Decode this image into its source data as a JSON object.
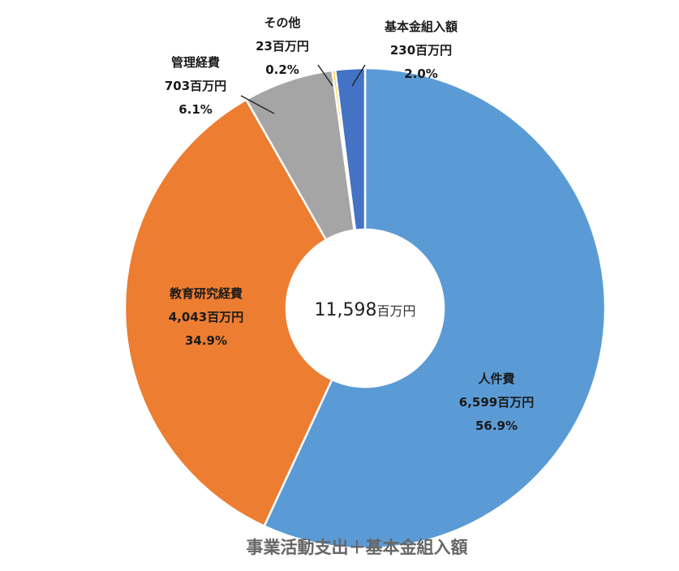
{
  "chart_data": {
    "type": "pie",
    "variant": "donut",
    "title": "事業活動支出＋基本金組入額",
    "center_label": {
      "value": "11,598",
      "unit": "百万円"
    },
    "total": 11598,
    "unit": "百万円",
    "slices": [
      {
        "label": "人件費",
        "value": 6599,
        "value_text": "6,599百万円",
        "percent": "56.9%",
        "color": "#5B9BD5"
      },
      {
        "label": "教育研究経費",
        "value": 4043,
        "value_text": "4,043百万円",
        "percent": "34.9%",
        "color": "#ED7D31"
      },
      {
        "label": "管理経費",
        "value": 703,
        "value_text": "703百万円",
        "percent": "6.1%",
        "color": "#A5A5A5"
      },
      {
        "label": "その他",
        "value": 23,
        "value_text": "23百万円",
        "percent": "0.2%",
        "color": "#FFC000"
      },
      {
        "label": "基本金組入額",
        "value": 230,
        "value_text": "230百万円",
        "percent": "2.0%",
        "color": "#4472C4"
      }
    ],
    "legend": "none"
  }
}
